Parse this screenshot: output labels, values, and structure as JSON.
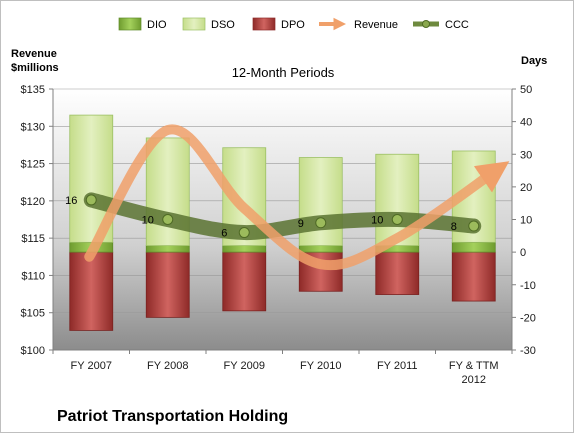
{
  "chart_data": {
    "type": "bar",
    "title": "12-Month Periods",
    "company": "Patriot Transportation Holding",
    "left_axis_label": [
      "Revenue",
      "$millions"
    ],
    "right_axis_label": "Days",
    "categories": [
      [
        "FY 2007"
      ],
      [
        "FY 2008"
      ],
      [
        "FY 2009"
      ],
      [
        "FY 2010"
      ],
      [
        "FY 2011"
      ],
      [
        "FY & TTM",
        "2012"
      ]
    ],
    "left_axis": {
      "range": [
        100,
        135
      ],
      "ticks": [
        100,
        105,
        110,
        115,
        120,
        125,
        130,
        135
      ],
      "tick_labels": [
        "$100",
        "$105",
        "$110",
        "$115",
        "$120",
        "$125",
        "$130",
        "$135"
      ]
    },
    "right_axis": {
      "range": [
        -30,
        50
      ],
      "ticks": [
        -30,
        -20,
        -10,
        0,
        10,
        20,
        30,
        40,
        50
      ],
      "tick_labels": [
        "-30",
        "-20",
        "-10",
        "0",
        "10",
        "20",
        "30",
        "40",
        "50"
      ]
    },
    "legend_position": "top",
    "series": [
      {
        "name": "DIO",
        "axis": "right",
        "kind": "stacked-bar",
        "color": "#8ec04b",
        "values": [
          3,
          2,
          2,
          2,
          2,
          3
        ]
      },
      {
        "name": "DSO",
        "axis": "right",
        "kind": "stacked-bar",
        "color": "#d3e8a4",
        "values": [
          39,
          33,
          30,
          27,
          28,
          28
        ]
      },
      {
        "name": "DPO",
        "axis": "right",
        "kind": "bar-below-zero",
        "color": "#c0504d",
        "values": [
          24,
          20,
          18,
          12,
          13,
          15
        ]
      },
      {
        "name": "Revenue",
        "axis": "left",
        "kind": "smooth-arrow-line",
        "color": "#f0a06a",
        "values": [
          112.5,
          129.5,
          119,
          111.5,
          115,
          123
        ]
      },
      {
        "name": "CCC",
        "axis": "right",
        "kind": "line-with-markers",
        "color": "#6e8a3e",
        "values": [
          16,
          10,
          6,
          9,
          10,
          8
        ],
        "labels": [
          "16",
          "10",
          "6",
          "9",
          "10",
          "8"
        ]
      }
    ]
  }
}
